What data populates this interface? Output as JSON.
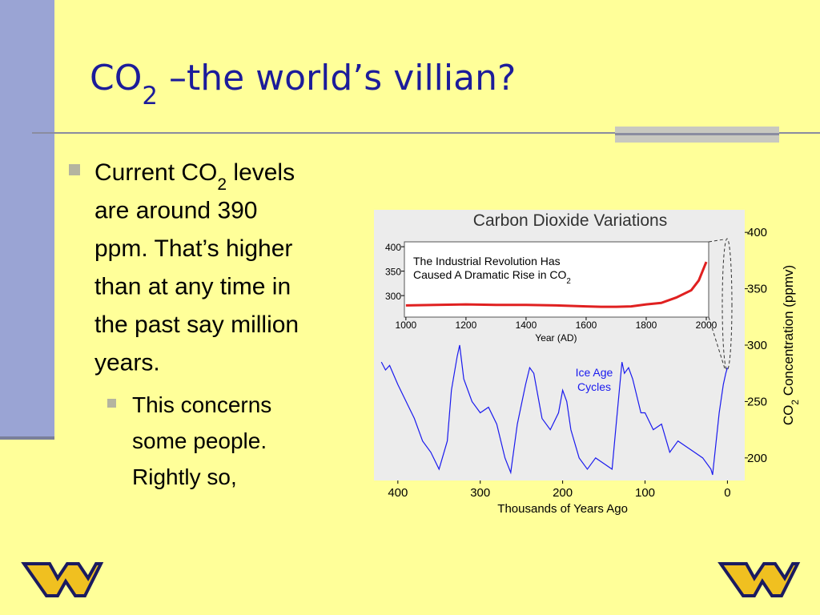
{
  "slide": {
    "title": [
      {
        "text": "CO"
      },
      {
        "text": "2",
        "sub": true
      },
      {
        "text": " –the world’s villian?"
      }
    ],
    "bullets": [
      {
        "level": 1,
        "lines": [
          [
            {
              "text": "Current CO"
            },
            {
              "text": "2",
              "sub": true
            },
            {
              "text": " levels"
            }
          ],
          [
            {
              "text": "are around 390"
            }
          ],
          [
            {
              "text": "ppm.  That’s higher"
            }
          ],
          [
            {
              "text": "than at any time in"
            }
          ],
          [
            {
              "text": "the past say million"
            }
          ],
          [
            {
              "text": "years."
            }
          ]
        ]
      },
      {
        "level": 2,
        "lines": [
          [
            {
              "text": "This concerns"
            }
          ],
          [
            {
              "text": "some people."
            }
          ],
          [
            {
              "text": "Rightly so,"
            }
          ]
        ]
      }
    ]
  },
  "chart_data": [
    {
      "type": "line",
      "title": "Carbon Dioxide Variations",
      "xlabel": "Thousands of Years Ago",
      "ylabel": [
        {
          "text": "CO"
        },
        {
          "text": "2",
          "sub": true
        },
        {
          "text": " Concentration (ppmv)"
        }
      ],
      "annotation": [
        "Ice Age",
        "Cycles"
      ],
      "xlim": [
        429,
        -21
      ],
      "ylim": [
        180,
        420
      ],
      "xticks": [
        400,
        300,
        200,
        100,
        0
      ],
      "yticks": [
        200,
        250,
        300,
        350,
        400
      ],
      "series": [
        {
          "color": "#1a1aee",
          "x": [
            420,
            415,
            410,
            400,
            390,
            380,
            370,
            360,
            350,
            340,
            335,
            328,
            325,
            320,
            310,
            300,
            290,
            280,
            270,
            263,
            255,
            245,
            240,
            235,
            225,
            215,
            205,
            200,
            195,
            190,
            180,
            170,
            160,
            150,
            140,
            135,
            128,
            125,
            120,
            115,
            105,
            100,
            90,
            80,
            70,
            60,
            50,
            40,
            30,
            20,
            18,
            10,
            5,
            2,
            0
          ],
          "values": [
            285,
            278,
            282,
            265,
            250,
            235,
            215,
            205,
            190,
            215,
            260,
            290,
            300,
            270,
            250,
            240,
            245,
            230,
            200,
            187,
            230,
            265,
            280,
            275,
            235,
            225,
            240,
            260,
            250,
            225,
            200,
            190,
            200,
            195,
            190,
            230,
            285,
            275,
            280,
            270,
            240,
            240,
            225,
            230,
            205,
            215,
            210,
            205,
            200,
            190,
            185,
            240,
            265,
            275,
            280
          ]
        }
      ]
    },
    {
      "type": "line",
      "title": [
        {
          "text": "The Industrial Revolution Has"
        },
        {
          "text": "Caused A Dramatic Rise in CO"
        },
        {
          "text": "2",
          "sub": true
        }
      ],
      "xlabel": "Year (AD)",
      "xlim": [
        995,
        2008
      ],
      "ylim": [
        256,
        410
      ],
      "xticks": [
        1000,
        1200,
        1400,
        1600,
        1800,
        2000
      ],
      "yticks": [
        300,
        350,
        400
      ],
      "series": [
        {
          "color": "#e02020",
          "x": [
            1000,
            1100,
            1200,
            1300,
            1400,
            1500,
            1600,
            1650,
            1700,
            1750,
            1800,
            1850,
            1900,
            1950,
            1975,
            2000
          ],
          "values": [
            280,
            281,
            282,
            281,
            281,
            280,
            278,
            277,
            277,
            278,
            282,
            285,
            296,
            311,
            331,
            369
          ]
        }
      ]
    }
  ]
}
